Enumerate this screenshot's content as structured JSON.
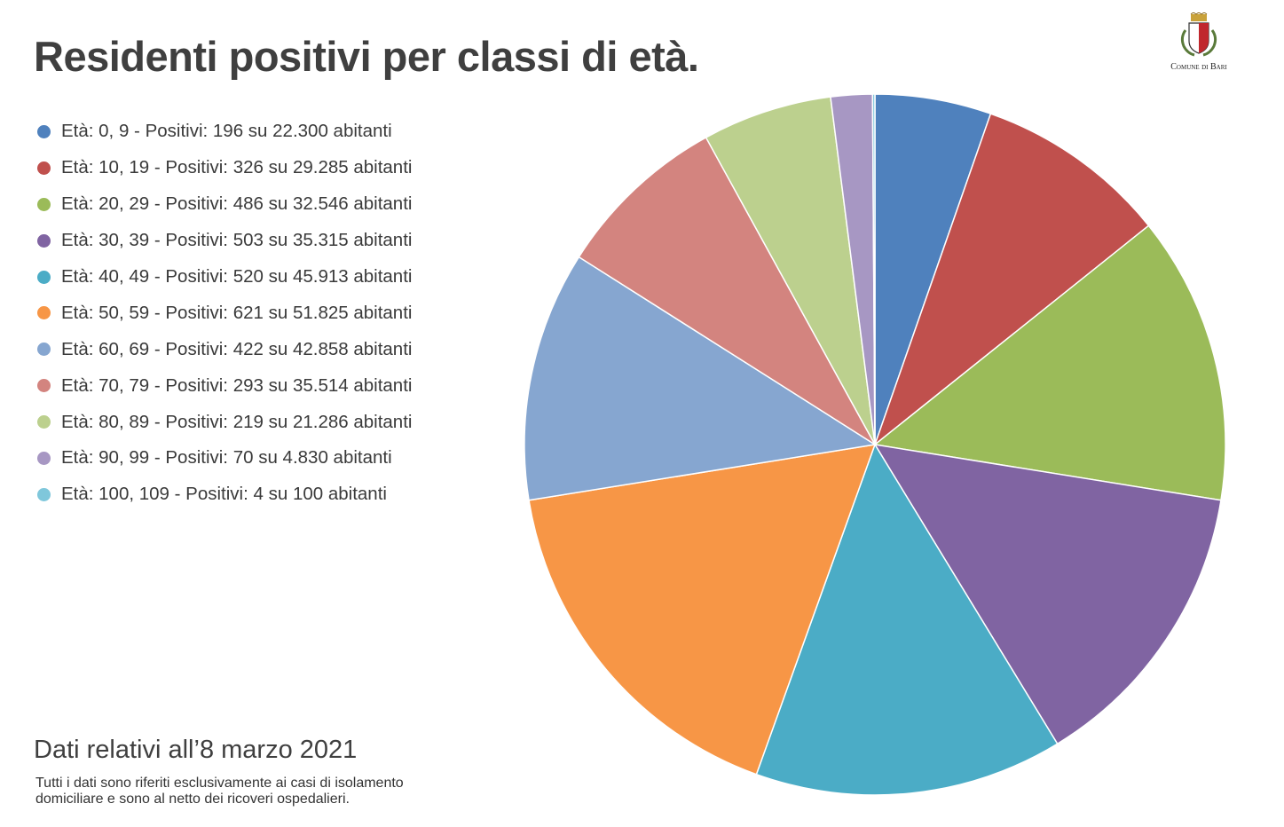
{
  "header": {
    "title": "Residenti positivi per classi di età."
  },
  "logo": {
    "label": "Comune di Bari"
  },
  "footer": {
    "date": "Dati relativi all’8 marzo 2021",
    "note_line1": "Tutti i dati sono riferiti esclusivamente ai casi di isolamento",
    "note_line2": "domiciliare e sono al netto dei ricoveri ospedalieri."
  },
  "chart_data": {
    "type": "pie",
    "title": "Residenti positivi per classi di età.",
    "legend_position": "left",
    "categories": [
      "0, 9",
      "10, 19",
      "20, 29",
      "30, 39",
      "40, 49",
      "50, 59",
      "60, 69",
      "70, 79",
      "80, 89",
      "90, 99",
      "100, 109"
    ],
    "values": [
      196,
      326,
      486,
      503,
      520,
      621,
      422,
      293,
      219,
      70,
      4
    ],
    "population": [
      22300,
      29285,
      32546,
      35315,
      45913,
      51825,
      42858,
      35514,
      21286,
      4830,
      100
    ],
    "legend": [
      "Età: 0, 9 - Positivi: 196 su 22.300 abitanti",
      "Età: 10, 19 - Positivi: 326 su 29.285 abitanti",
      "Età: 20, 29 - Positivi: 486 su 32.546 abitanti",
      "Età: 30, 39 - Positivi: 503 su 35.315 abitanti",
      "Età: 40, 49 - Positivi: 520 su 45.913 abitanti",
      "Età: 50, 59 - Positivi: 621 su 51.825 abitanti",
      "Età: 60, 69 - Positivi: 422 su 42.858 abitanti",
      "Età: 70, 79 - Positivi: 293 su 35.514 abitanti",
      "Età: 80, 89 - Positivi: 219 su 21.286 abitanti",
      "Età: 90, 99 - Positivi: 70 su 4.830 abitanti",
      "Età: 100, 109 - Positivi: 4 su 100 abitanti"
    ],
    "colors": [
      "#4f81bd",
      "#c0504d",
      "#9bbb59",
      "#8064a2",
      "#4bacc6",
      "#f79646",
      "#86a6d0",
      "#d3847f",
      "#bcd08e",
      "#a797c3",
      "#7fc7db"
    ]
  }
}
